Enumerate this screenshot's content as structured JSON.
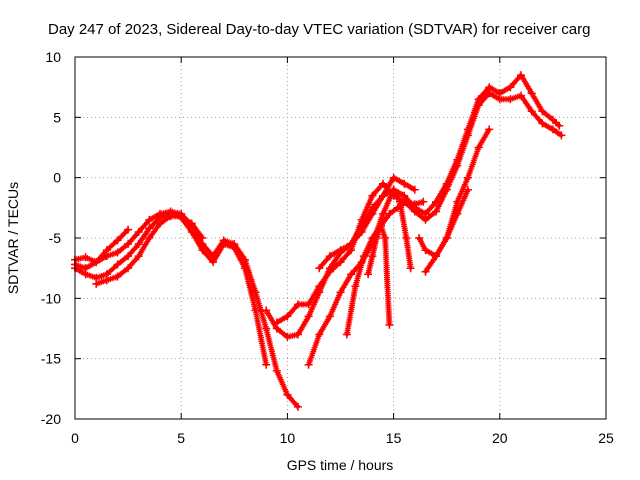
{
  "chart_data": {
    "type": "scatter",
    "title": "Day 247 of 2023, Sidereal Day-to-day VTEC variation (SDTVAR) for receiver carg",
    "xlabel": "GPS time / hours",
    "ylabel": "SDTVAR / TECUs",
    "xlim": [
      0,
      25
    ],
    "ylim": [
      -20,
      10
    ],
    "xticks": [
      0,
      5,
      10,
      15,
      20,
      25
    ],
    "yticks": [
      -20,
      -15,
      -10,
      -5,
      0,
      5,
      10
    ],
    "xtick_labels": [
      "0",
      "5",
      "10",
      "15",
      "20",
      "25"
    ],
    "ytick_labels": [
      "-20",
      "-15",
      "-10",
      "-5",
      "0",
      "5",
      "10"
    ],
    "grid": true,
    "legend": "none",
    "marker": "plus",
    "color": "#ff0000",
    "series": [
      {
        "x": [
          0.0,
          0.5,
          1.0,
          1.5,
          2.0,
          2.5,
          3.0,
          3.5,
          4.0,
          4.5,
          5.0,
          5.5,
          6.0,
          6.5,
          7.0,
          7.5,
          8.0,
          8.5,
          9.0,
          9.5,
          10.0,
          10.5
        ],
        "y": [
          -7.2,
          -7.5,
          -7.0,
          -6.5,
          -6.2,
          -5.5,
          -4.5,
          -3.5,
          -3.0,
          -2.8,
          -3.0,
          -4.0,
          -5.5,
          -6.5,
          -5.2,
          -5.5,
          -6.8,
          -9.5,
          -12.5,
          -16.0,
          -18.0,
          -19.0
        ]
      },
      {
        "x": [
          0.0,
          0.5,
          1.0,
          1.5,
          2.0,
          2.5,
          3.0,
          3.5,
          4.0,
          4.5,
          5.0,
          5.5,
          6.0,
          6.5,
          7.0,
          7.5,
          8.0,
          8.5,
          9.0
        ],
        "y": [
          -7.5,
          -8.0,
          -8.3,
          -8.0,
          -7.2,
          -6.5,
          -5.5,
          -4.2,
          -3.3,
          -3.0,
          -3.3,
          -4.5,
          -6.0,
          -7.0,
          -5.5,
          -5.8,
          -7.5,
          -11.0,
          -15.5
        ]
      },
      {
        "x": [
          0.0,
          0.5,
          1.0,
          1.5,
          2.0,
          2.5
        ],
        "y": [
          -6.8,
          -6.6,
          -7.0,
          -6.0,
          -5.2,
          -4.3
        ]
      },
      {
        "x": [
          1.0,
          1.5,
          2.0,
          2.5,
          3.0,
          3.5,
          4.0,
          4.5,
          5.0,
          5.5,
          6.0
        ],
        "y": [
          -8.8,
          -8.5,
          -8.2,
          -7.5,
          -6.5,
          -5.0,
          -3.8,
          -3.2,
          -3.2,
          -3.8,
          -5.0
        ]
      },
      {
        "x": [
          9.0,
          9.5,
          10.0,
          10.5,
          11.0,
          11.5,
          12.0,
          12.5,
          13.0,
          13.5,
          14.0,
          14.5,
          15.0,
          15.5,
          16.0,
          16.5,
          17.0,
          17.5,
          18.0,
          18.5,
          19.0,
          19.5,
          20.0,
          20.5,
          21.0,
          21.5,
          22.0,
          22.5,
          22.8
        ],
        "y": [
          -11.0,
          -12.5,
          -13.2,
          -13.0,
          -11.5,
          -9.5,
          -7.5,
          -6.2,
          -5.5,
          -4.0,
          -2.5,
          -1.5,
          -1.0,
          -1.5,
          -2.5,
          -3.0,
          -2.0,
          -0.5,
          1.5,
          4.0,
          6.5,
          7.5,
          7.0,
          7.5,
          8.5,
          7.0,
          5.5,
          4.8,
          4.3
        ]
      },
      {
        "x": [
          9.5,
          10.0,
          10.5,
          11.0,
          11.5,
          12.0,
          12.5,
          13.0,
          13.5,
          14.0,
          14.5,
          15.0,
          15.5,
          16.0,
          16.5,
          17.0,
          17.5,
          18.0,
          18.5,
          19.0,
          19.5,
          20.0,
          20.5,
          21.0,
          21.5,
          22.0,
          22.5,
          22.9
        ],
        "y": [
          -12.0,
          -11.5,
          -10.5,
          -10.5,
          -9.0,
          -7.8,
          -7.0,
          -6.0,
          -3.5,
          -1.5,
          -0.5,
          -1.5,
          -2.0,
          -2.8,
          -3.5,
          -2.8,
          -1.0,
          1.0,
          3.5,
          6.0,
          7.0,
          6.5,
          6.5,
          6.8,
          5.5,
          4.5,
          4.0,
          3.5
        ]
      },
      {
        "x": [
          11.0,
          11.5,
          12.0,
          12.5,
          13.0,
          13.5,
          14.0,
          14.5,
          15.0,
          15.3,
          15.6,
          15.8
        ],
        "y": [
          -15.5,
          -13.0,
          -11.5,
          -9.5,
          -8.0,
          -7.0,
          -5.5,
          -3.0,
          -1.0,
          -2.0,
          -5.0,
          -7.5
        ]
      },
      {
        "x": [
          11.5,
          12.0,
          12.5,
          13.0,
          13.5,
          14.0,
          14.5,
          15.0,
          15.5,
          16.0
        ],
        "y": [
          -7.5,
          -6.5,
          -6.0,
          -5.5,
          -4.5,
          -3.0,
          -1.5,
          0.0,
          -0.5,
          -1.0
        ]
      },
      {
        "x": [
          12.8,
          13.2,
          13.6,
          14.0,
          14.4,
          14.8,
          15.2,
          15.6,
          16.0,
          16.4
        ],
        "y": [
          -13.0,
          -9.0,
          -6.5,
          -5.0,
          -4.0,
          -3.0,
          -2.5,
          -2.0,
          -2.2,
          -2.0
        ]
      },
      {
        "x": [
          13.8,
          14.0,
          14.2,
          14.4,
          14.6,
          14.8
        ],
        "y": [
          -8.0,
          -6.5,
          -5.0,
          -4.0,
          -5.0,
          -12.2
        ]
      },
      {
        "x": [
          16.5,
          17.0,
          17.5,
          18.0,
          18.5,
          19.0,
          19.5
        ],
        "y": [
          -7.8,
          -6.5,
          -5.0,
          -2.0,
          0.0,
          2.5,
          4.0
        ]
      },
      {
        "x": [
          16.2,
          16.5,
          17.0,
          17.5,
          18.0,
          18.5
        ],
        "y": [
          -5.0,
          -6.0,
          -6.5,
          -5.0,
          -3.0,
          -1.0
        ]
      }
    ]
  }
}
